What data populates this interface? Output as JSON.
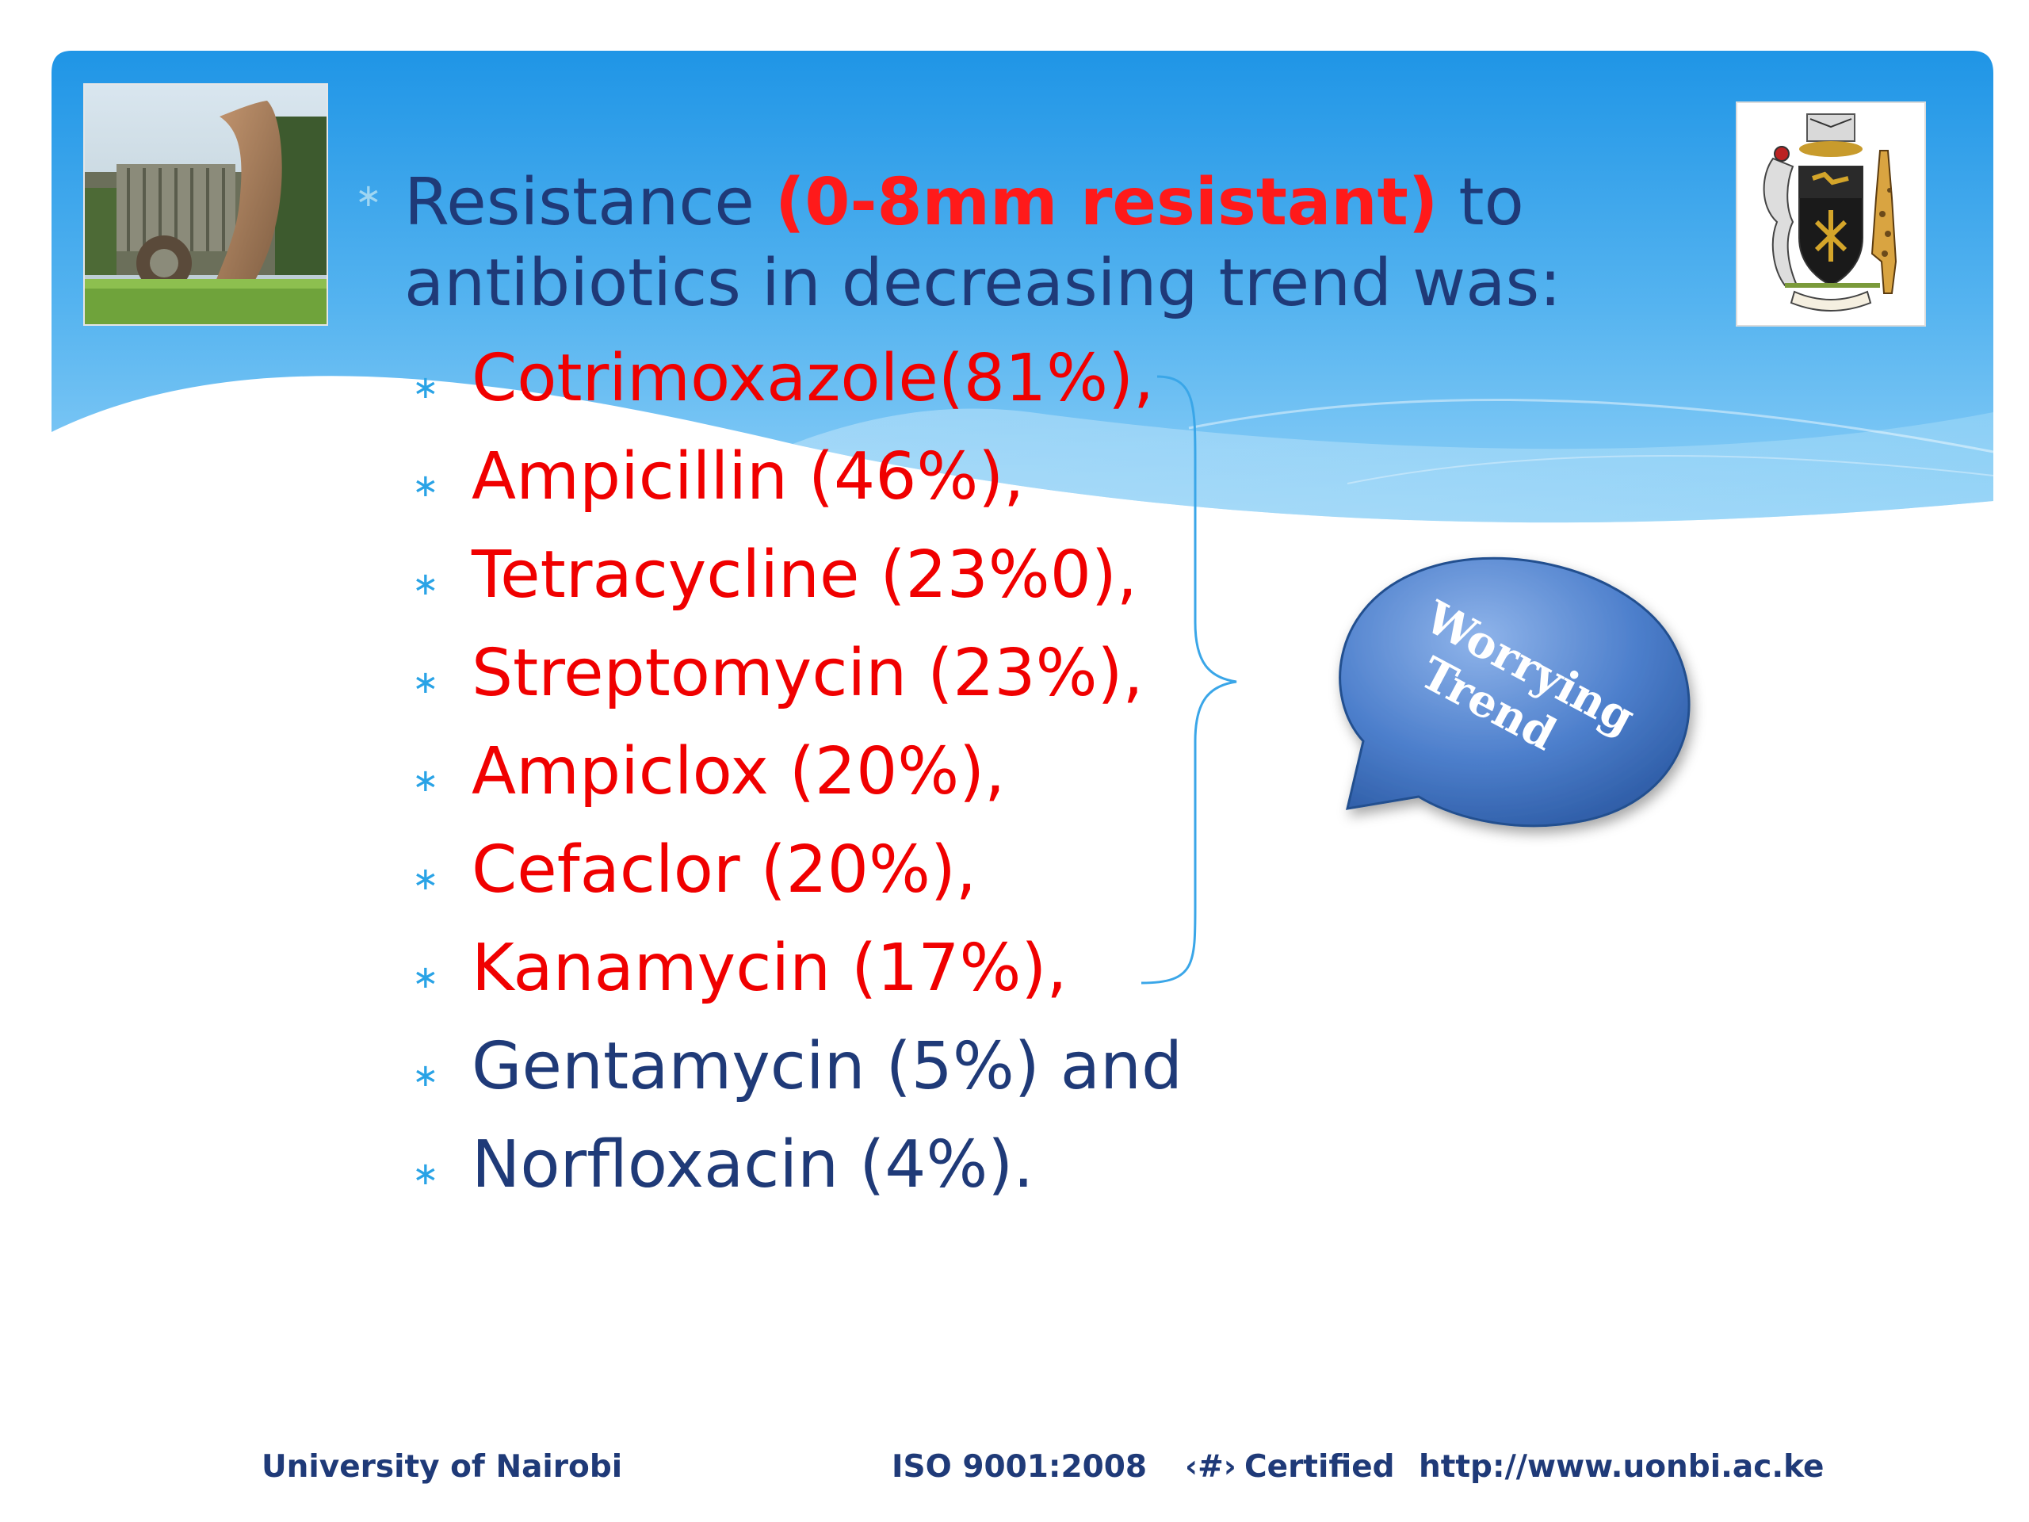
{
  "colors": {
    "banner_top": "#2a9de8",
    "banner_light": "#7fc6f5",
    "heading_text": "#1f3a78",
    "highlight_red": "#ff1a1a",
    "bullet_blue": "#29a3e6",
    "bubble_blue": "#3f73c4"
  },
  "slide": {
    "heading": {
      "part1": "Resistance ",
      "highlight": "(0-8mm resistant)",
      "part2": " to",
      "line2": "antibiotics in decreasing trend was:"
    },
    "bullet_glyph": "∗",
    "items": [
      {
        "text": "Cotrimoxazole(81%),",
        "style": "red"
      },
      {
        "text": "Ampicillin (46%),",
        "style": "red"
      },
      {
        "text": "Tetracycline (23%0),",
        "style": "red"
      },
      {
        "text": "Streptomycin (23%),",
        "style": "red"
      },
      {
        "text": "Ampiclox (20%),",
        "style": "red"
      },
      {
        "text": "Cefaclor (20%),",
        "style": "red"
      },
      {
        "text": "Kanamycin (17%),",
        "style": "red"
      },
      {
        "text": "Gentamycin (5%) and",
        "style": "navy"
      },
      {
        "text": "Norfloxacin (4%).",
        "style": "navy"
      }
    ],
    "callout": {
      "line1": "Worrying",
      "line2": "Trend"
    }
  },
  "images": {
    "campus_photo": "university-campus-photo",
    "crest": "university-coat-of-arms"
  },
  "footer": {
    "institution": "University of Nairobi",
    "iso": "ISO 9001:2008",
    "page_marker": "‹#›",
    "certified": "Certified",
    "url": "http://www.uonbi.ac.ke"
  }
}
